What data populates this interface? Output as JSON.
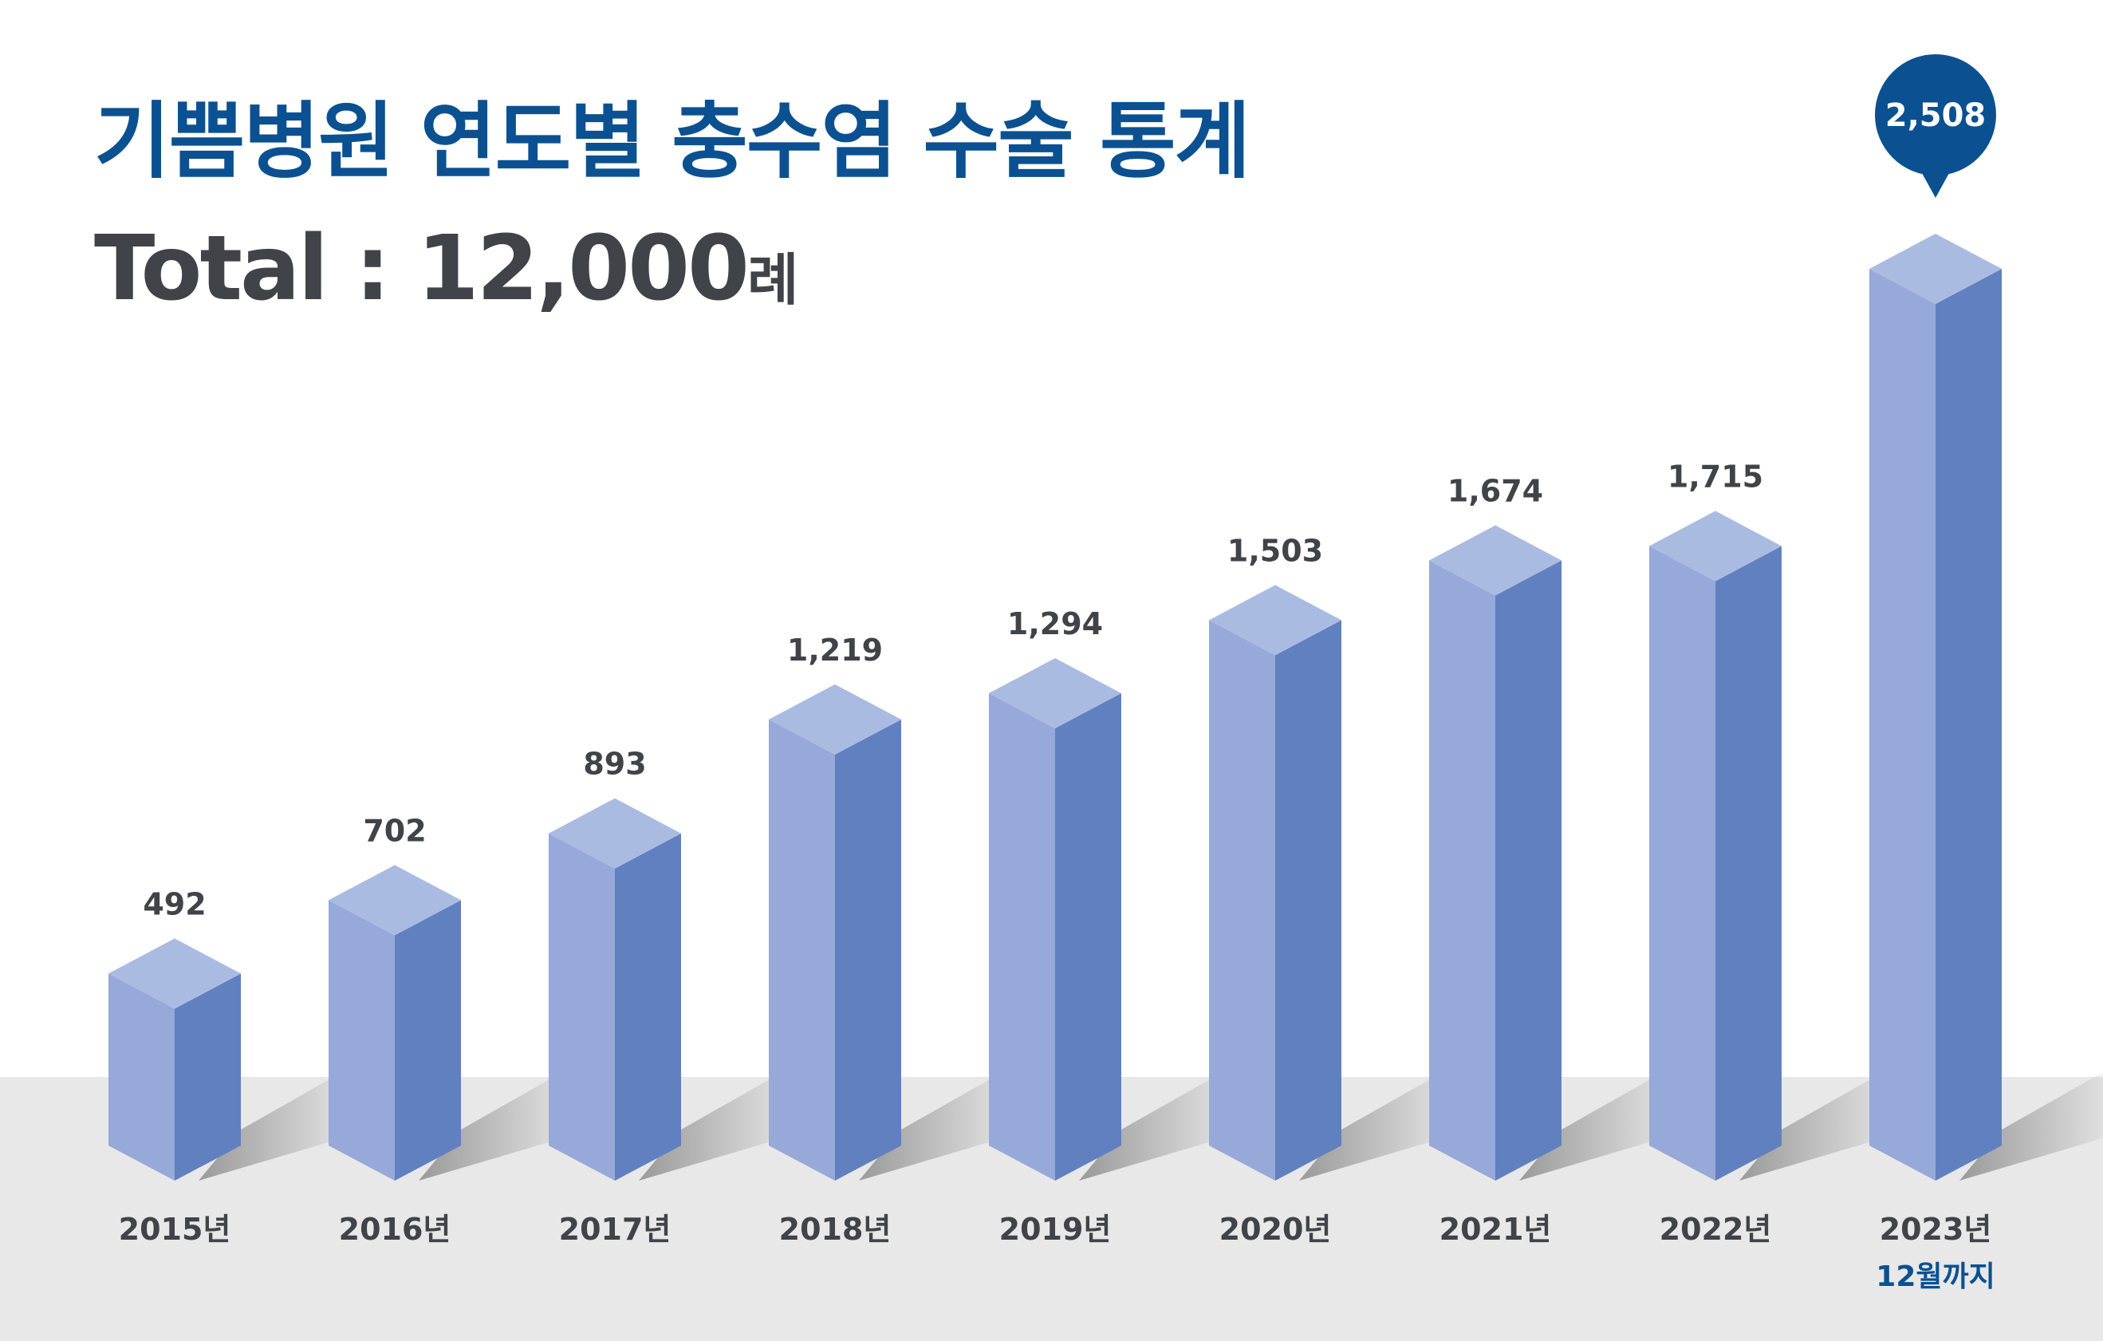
{
  "header": {
    "title": "기쁨병원 연도별 충수염 수술 통계",
    "total_label": "Total : 12,000",
    "total_unit": "례"
  },
  "chart_data": {
    "type": "bar",
    "title": "기쁨병원 연도별 충수염 수술 통계",
    "categories": [
      "2015년",
      "2016년",
      "2017년",
      "2018년",
      "2019년",
      "2020년",
      "2021년",
      "2022년",
      "2023년"
    ],
    "values": [
      492,
      702,
      893,
      1219,
      1294,
      1503,
      1674,
      1715,
      2508
    ],
    "value_labels": [
      "492",
      "702",
      "893",
      "1,219",
      "1,294",
      "1,503",
      "1,674",
      "1,715",
      "2,508"
    ],
    "highlight_index": 8,
    "highlight_note": "12월까지",
    "style": "3d-column",
    "ylim": [
      0,
      2600
    ],
    "grid": false,
    "legend": "none",
    "colors": {
      "front": "#97a9d8",
      "side": "#6180c0",
      "top": "#aabbe2",
      "accent": "#0b5191",
      "label": "#404348",
      "floor": "#e8e8e8"
    }
  }
}
